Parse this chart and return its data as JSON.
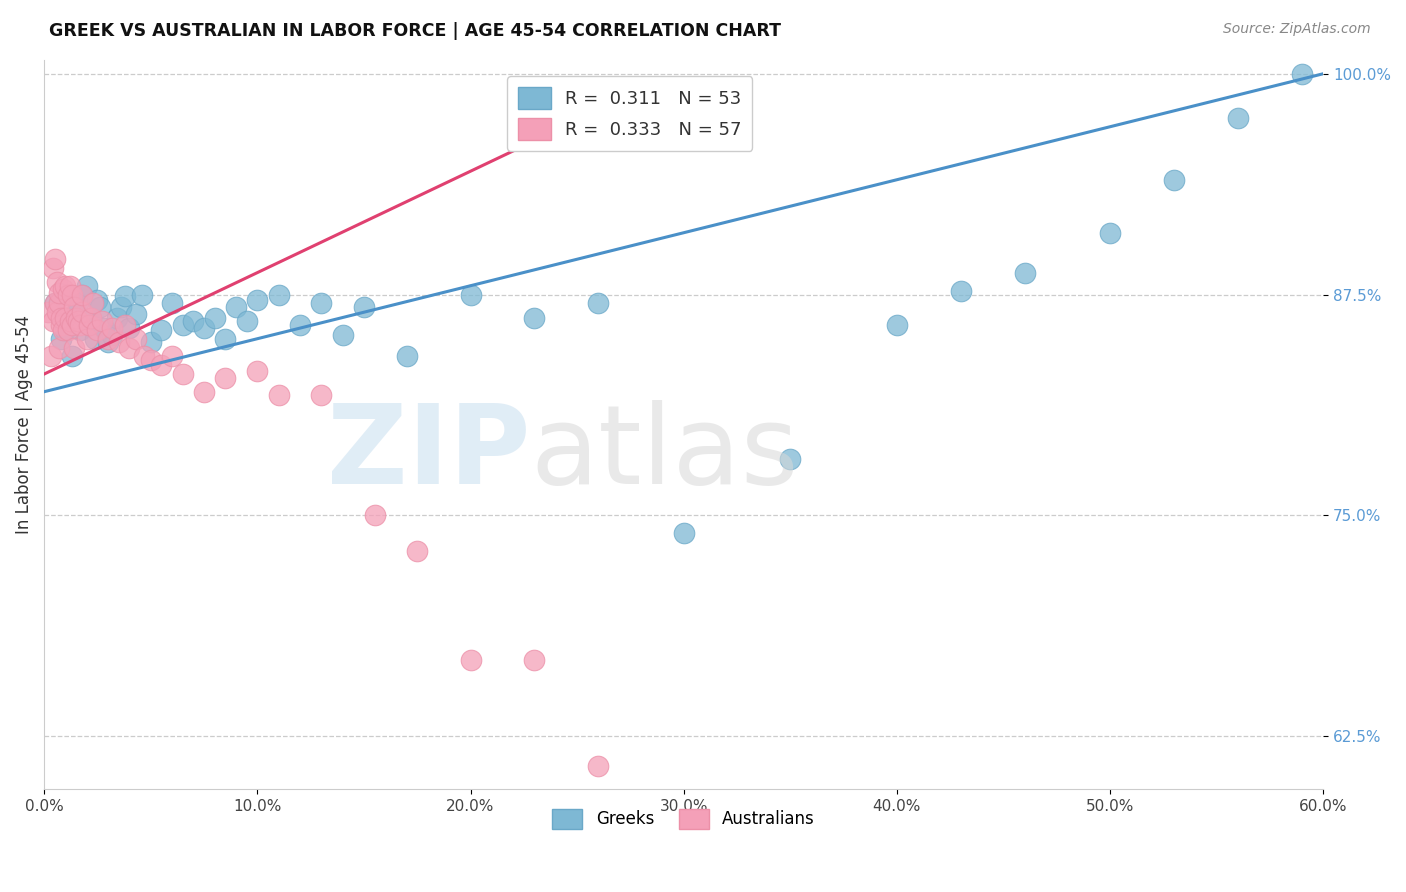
{
  "title": "GREEK VS AUSTRALIAN IN LABOR FORCE | AGE 45-54 CORRELATION CHART",
  "source": "Source: ZipAtlas.com",
  "ylabel": "In Labor Force | Age 45-54",
  "xlim": [
    0.0,
    0.6
  ],
  "ylim": [
    0.595,
    1.008
  ],
  "yticks": [
    0.625,
    0.75,
    0.875,
    1.0
  ],
  "ytick_labels": [
    "62.5%",
    "75.0%",
    "87.5%",
    "100.0%"
  ],
  "xticks": [
    0.0,
    0.1,
    0.2,
    0.3,
    0.4,
    0.5,
    0.6
  ],
  "xtick_labels": [
    "0.0%",
    "10.0%",
    "20.0%",
    "30.0%",
    "40.0%",
    "50.0%",
    "60.0%"
  ],
  "blue_color": "#7EB8D4",
  "pink_color": "#F4A0B8",
  "blue_edge": "#6AA8C8",
  "pink_edge": "#EC90A8",
  "blue_line_color": "#4A90C8",
  "pink_line_color": "#E04070",
  "ytick_color": "#5B9BD5",
  "R_blue": 0.311,
  "N_blue": 53,
  "R_pink": 0.333,
  "N_pink": 57,
  "legend_label_blue": "Greeks",
  "legend_label_pink": "Australians",
  "blue_x": [
    0.005,
    0.008,
    0.01,
    0.012,
    0.013,
    0.015,
    0.016,
    0.017,
    0.018,
    0.02,
    0.021,
    0.022,
    0.024,
    0.025,
    0.026,
    0.028,
    0.03,
    0.032,
    0.034,
    0.036,
    0.038,
    0.04,
    0.043,
    0.046,
    0.05,
    0.055,
    0.06,
    0.065,
    0.07,
    0.075,
    0.08,
    0.085,
    0.09,
    0.095,
    0.1,
    0.11,
    0.12,
    0.13,
    0.14,
    0.15,
    0.17,
    0.2,
    0.23,
    0.26,
    0.3,
    0.35,
    0.4,
    0.43,
    0.46,
    0.5,
    0.53,
    0.56,
    0.59
  ],
  "blue_y": [
    0.87,
    0.85,
    0.855,
    0.86,
    0.84,
    0.865,
    0.87,
    0.855,
    0.875,
    0.88,
    0.858,
    0.862,
    0.85,
    0.872,
    0.868,
    0.856,
    0.848,
    0.852,
    0.862,
    0.868,
    0.874,
    0.856,
    0.864,
    0.875,
    0.848,
    0.855,
    0.87,
    0.858,
    0.86,
    0.856,
    0.862,
    0.85,
    0.868,
    0.86,
    0.872,
    0.875,
    0.858,
    0.87,
    0.852,
    0.868,
    0.84,
    0.875,
    0.862,
    0.87,
    0.74,
    0.782,
    0.858,
    0.877,
    0.887,
    0.91,
    0.94,
    0.975,
    1.0
  ],
  "pink_x": [
    0.002,
    0.003,
    0.004,
    0.004,
    0.005,
    0.005,
    0.006,
    0.006,
    0.007,
    0.007,
    0.007,
    0.008,
    0.008,
    0.009,
    0.009,
    0.01,
    0.01,
    0.011,
    0.011,
    0.012,
    0.012,
    0.013,
    0.013,
    0.014,
    0.014,
    0.015,
    0.016,
    0.017,
    0.018,
    0.018,
    0.02,
    0.021,
    0.022,
    0.023,
    0.025,
    0.027,
    0.03,
    0.032,
    0.035,
    0.038,
    0.04,
    0.043,
    0.047,
    0.05,
    0.055,
    0.06,
    0.065,
    0.075,
    0.085,
    0.1,
    0.11,
    0.13,
    0.155,
    0.175,
    0.2,
    0.23,
    0.26
  ],
  "pink_y": [
    0.865,
    0.84,
    0.86,
    0.89,
    0.87,
    0.895,
    0.865,
    0.882,
    0.87,
    0.845,
    0.876,
    0.858,
    0.862,
    0.855,
    0.878,
    0.862,
    0.88,
    0.855,
    0.875,
    0.86,
    0.88,
    0.858,
    0.875,
    0.845,
    0.868,
    0.862,
    0.86,
    0.858,
    0.865,
    0.875,
    0.85,
    0.858,
    0.862,
    0.87,
    0.855,
    0.86,
    0.85,
    0.856,
    0.848,
    0.858,
    0.845,
    0.85,
    0.84,
    0.838,
    0.835,
    0.84,
    0.83,
    0.82,
    0.828,
    0.832,
    0.818,
    0.818,
    0.75,
    0.73,
    0.668,
    0.668,
    0.608
  ],
  "blue_line_x": [
    0.0,
    0.6
  ],
  "blue_line_y": [
    0.82,
    1.0
  ],
  "pink_line_x": [
    0.0,
    0.27
  ],
  "pink_line_y": [
    0.83,
    0.985
  ],
  "fig_width": 14.06,
  "fig_height": 8.92,
  "dpi": 100
}
